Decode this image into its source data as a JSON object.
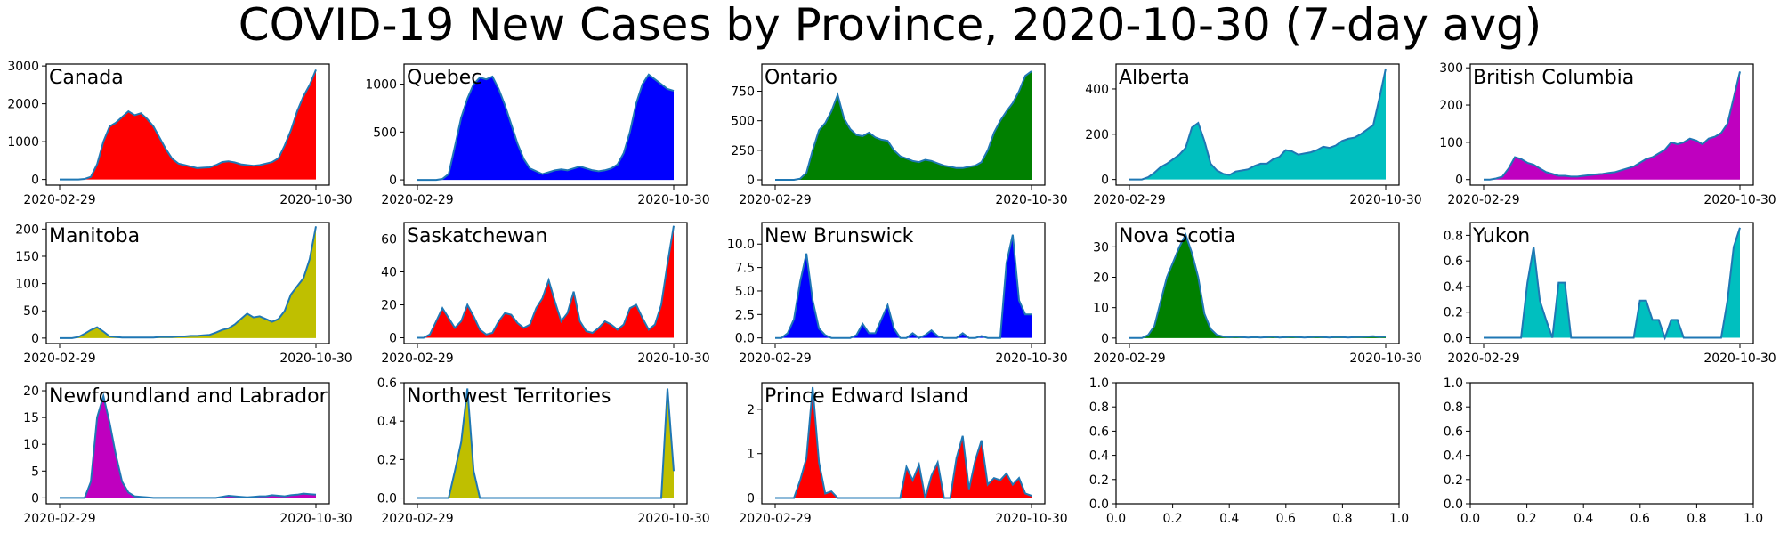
{
  "title": "COVID-19 New Cases by Province, 2020-10-30 (7-day avg)",
  "chart_data": [
    {
      "type": "area",
      "title": "Canada",
      "color": "#ff0000",
      "x_ticks": [
        "2020-02-29",
        "2020-10-30"
      ],
      "yticks": [
        0,
        1000,
        2000,
        3000
      ],
      "ylim": [
        -150,
        3050
      ],
      "series": [
        {
          "values": [
            0,
            0,
            0,
            0,
            15,
            70,
            400,
            1000,
            1400,
            1500,
            1650,
            1800,
            1700,
            1750,
            1600,
            1400,
            1100,
            800,
            550,
            420,
            380,
            340,
            300,
            310,
            320,
            380,
            460,
            480,
            450,
            400,
            380,
            360,
            380,
            420,
            460,
            560,
            900,
            1300,
            1800,
            2200,
            2500,
            2900
          ]
        }
      ]
    },
    {
      "type": "area",
      "title": "Quebec",
      "color": "#0000ff",
      "x_ticks": [
        "2020-02-29",
        "2020-10-30"
      ],
      "yticks": [
        0,
        500,
        1000
      ],
      "ylim": [
        -55,
        1210
      ],
      "series": [
        {
          "values": [
            0,
            0,
            0,
            0,
            10,
            60,
            350,
            650,
            850,
            1000,
            1070,
            1050,
            1080,
            950,
            780,
            580,
            380,
            220,
            120,
            90,
            60,
            80,
            100,
            110,
            100,
            120,
            140,
            120,
            100,
            90,
            100,
            120,
            160,
            280,
            500,
            800,
            1000,
            1100,
            1050,
            1000,
            950,
            930
          ]
        }
      ]
    },
    {
      "type": "area",
      "title": "Ontario",
      "color": "#008000",
      "x_ticks": [
        "2020-02-29",
        "2020-10-30"
      ],
      "yticks": [
        0,
        250,
        500,
        750
      ],
      "ylim": [
        -45,
        980
      ],
      "series": [
        {
          "values": [
            0,
            0,
            0,
            0,
            10,
            60,
            250,
            420,
            480,
            580,
            720,
            520,
            430,
            380,
            370,
            400,
            360,
            340,
            330,
            250,
            200,
            180,
            160,
            150,
            170,
            160,
            140,
            120,
            110,
            100,
            100,
            110,
            120,
            150,
            250,
            400,
            500,
            580,
            650,
            750,
            880,
            920
          ]
        }
      ]
    },
    {
      "type": "area",
      "title": "Alberta",
      "color": "#00bfbf",
      "x_ticks": [
        "2020-02-29",
        "2020-10-30"
      ],
      "yticks": [
        0,
        200,
        400
      ],
      "ylim": [
        -25,
        510
      ],
      "series": [
        {
          "values": [
            0,
            0,
            0,
            10,
            30,
            55,
            70,
            90,
            110,
            140,
            230,
            250,
            170,
            70,
            40,
            25,
            20,
            35,
            40,
            45,
            60,
            70,
            70,
            90,
            100,
            130,
            125,
            110,
            115,
            120,
            130,
            145,
            140,
            150,
            170,
            180,
            185,
            200,
            220,
            240,
            360,
            490
          ]
        }
      ]
    },
    {
      "type": "area",
      "title": "British Columbia",
      "color": "#bf00bf",
      "x_ticks": [
        "2020-02-29",
        "2020-10-30"
      ],
      "yticks": [
        0,
        100,
        200,
        300
      ],
      "ylim": [
        -15,
        310
      ],
      "series": [
        {
          "values": [
            0,
            0,
            3,
            8,
            30,
            60,
            55,
            45,
            40,
            30,
            20,
            15,
            10,
            10,
            8,
            8,
            10,
            12,
            14,
            15,
            18,
            20,
            25,
            30,
            35,
            45,
            55,
            60,
            70,
            80,
            100,
            95,
            100,
            110,
            105,
            95,
            110,
            115,
            125,
            150,
            220,
            290
          ]
        }
      ]
    },
    {
      "type": "area",
      "title": "Manitoba",
      "color": "#bfbf00",
      "x_ticks": [
        "2020-02-29",
        "2020-10-30"
      ],
      "yticks": [
        0,
        50,
        100,
        150,
        200
      ],
      "ylim": [
        -10,
        212
      ],
      "series": [
        {
          "values": [
            0,
            0,
            0,
            2,
            8,
            15,
            20,
            12,
            3,
            2,
            1,
            1,
            1,
            1,
            1,
            1,
            2,
            2,
            2,
            3,
            3,
            4,
            4,
            5,
            6,
            10,
            15,
            18,
            25,
            35,
            45,
            38,
            40,
            35,
            30,
            35,
            50,
            80,
            95,
            110,
            145,
            205
          ]
        }
      ]
    },
    {
      "type": "area",
      "title": "Saskatchewan",
      "color": "#ff0000",
      "x_ticks": [
        "2020-02-29",
        "2020-10-30"
      ],
      "yticks": [
        0,
        20,
        40,
        60
      ],
      "ylim": [
        -3.5,
        70
      ],
      "series": [
        {
          "values": [
            0,
            0,
            2,
            10,
            18,
            12,
            6,
            10,
            20,
            13,
            5,
            2,
            3,
            10,
            15,
            14,
            9,
            6,
            8,
            18,
            24,
            35,
            22,
            10,
            15,
            28,
            10,
            4,
            3,
            6,
            10,
            8,
            5,
            8,
            18,
            20,
            12,
            5,
            8,
            20,
            45,
            68
          ]
        }
      ]
    },
    {
      "type": "area",
      "title": "New Brunswick",
      "color": "#0000ff",
      "x_ticks": [
        "2020-02-29",
        "2020-10-30"
      ],
      "yticks": [
        0,
        2.5,
        5,
        7.5,
        10
      ],
      "yticklabels": [
        "0.0",
        "2.5",
        "5.0",
        "7.5",
        "10.0"
      ],
      "ylim": [
        -0.6,
        12.3
      ],
      "series": [
        {
          "values": [
            0,
            0,
            0.5,
            2,
            6,
            9,
            4,
            1,
            0.3,
            0,
            0,
            0,
            0,
            0.3,
            1.5,
            0.5,
            0.5,
            2,
            3.5,
            1,
            0,
            0,
            0.5,
            0,
            0.3,
            0.8,
            0.2,
            0,
            0,
            0,
            0.5,
            0,
            0,
            0.2,
            0,
            0,
            0,
            8,
            11,
            4,
            2.5,
            2.5
          ]
        }
      ]
    },
    {
      "type": "area",
      "title": "Nova Scotia",
      "color": "#008000",
      "x_ticks": [
        "2020-02-29",
        "2020-10-30"
      ],
      "yticks": [
        0,
        10,
        20,
        30
      ],
      "ylim": [
        -1.8,
        38
      ],
      "series": [
        {
          "values": [
            0,
            0,
            0,
            1,
            4,
            12,
            20,
            25,
            30,
            34,
            28,
            20,
            8,
            3,
            1,
            0.5,
            0.3,
            0.5,
            0.3,
            0.2,
            0.3,
            0.2,
            0.3,
            0.5,
            0.2,
            0.3,
            0.5,
            0.3,
            0.2,
            0.3,
            0.5,
            0.3,
            0.2,
            0.4,
            0.3,
            0.2,
            0.3,
            0.4,
            0.5,
            0.6,
            0.4,
            0.5
          ]
        }
      ]
    },
    {
      "type": "area",
      "title": "Yukon",
      "color": "#00bfbf",
      "x_ticks": [
        "2020-02-29",
        "2020-10-30"
      ],
      "yticks": [
        0,
        0.2,
        0.4,
        0.6,
        0.8
      ],
      "yticklabels": [
        "0.0",
        "0.2",
        "0.4",
        "0.6",
        "0.8"
      ],
      "ylim": [
        -0.045,
        0.9
      ],
      "series": [
        {
          "values": [
            0,
            0,
            0,
            0,
            0,
            0,
            0,
            0.43,
            0.71,
            0.29,
            0.14,
            0,
            0.43,
            0.43,
            0,
            0,
            0,
            0,
            0,
            0,
            0,
            0,
            0,
            0,
            0,
            0.29,
            0.29,
            0.14,
            0.14,
            0,
            0.14,
            0.14,
            0,
            0,
            0,
            0,
            0,
            0,
            0,
            0.29,
            0.71,
            0.86
          ]
        }
      ]
    },
    {
      "type": "area",
      "title": "Newfoundland and Labrador",
      "color": "#bf00bf",
      "x_ticks": [
        "2020-02-29",
        "2020-10-30"
      ],
      "yticks": [
        0,
        5,
        10,
        15,
        20
      ],
      "ylim": [
        -1.1,
        21.5
      ],
      "series": [
        {
          "values": [
            0,
            0,
            0,
            0,
            0,
            3,
            15,
            19,
            14,
            8,
            3,
            1,
            0.3,
            0.2,
            0.1,
            0,
            0,
            0,
            0,
            0,
            0,
            0,
            0,
            0,
            0,
            0,
            0.2,
            0.4,
            0.3,
            0.2,
            0.1,
            0.2,
            0.3,
            0.3,
            0.5,
            0.4,
            0.3,
            0.5,
            0.6,
            0.8,
            0.7,
            0.6
          ]
        }
      ]
    },
    {
      "type": "area",
      "title": "Northwest Territories",
      "color": "#bfbf00",
      "x_ticks": [
        "2020-02-29",
        "2020-10-30"
      ],
      "yticks": [
        0,
        0.2,
        0.4,
        0.6
      ],
      "yticklabels": [
        "0.0",
        "0.2",
        "0.4",
        "0.6"
      ],
      "ylim": [
        -0.03,
        0.6
      ],
      "series": [
        {
          "values": [
            0,
            0,
            0,
            0,
            0,
            0,
            0.14,
            0.29,
            0.57,
            0.14,
            0,
            0,
            0,
            0,
            0,
            0,
            0,
            0,
            0,
            0,
            0,
            0,
            0,
            0,
            0,
            0,
            0,
            0,
            0,
            0,
            0,
            0,
            0,
            0,
            0,
            0,
            0,
            0,
            0,
            0,
            0.57,
            0.14
          ]
        }
      ]
    },
    {
      "type": "area",
      "title": "Prince Edward Island",
      "color": "#ff0000",
      "x_ticks": [
        "2020-02-29",
        "2020-10-30"
      ],
      "yticks": [
        0,
        1,
        2
      ],
      "ylim": [
        -0.13,
        2.6
      ],
      "series": [
        {
          "values": [
            0,
            0,
            0,
            0,
            0.4,
            0.9,
            2.5,
            0.8,
            0.1,
            0.15,
            0,
            0,
            0,
            0,
            0,
            0,
            0,
            0,
            0,
            0,
            0,
            0.7,
            0.4,
            0.75,
            0,
            0.5,
            0.8,
            0,
            0,
            0.9,
            1.4,
            0.2,
            0.85,
            1.3,
            0.3,
            0.45,
            0.4,
            0.55,
            0.3,
            0.45,
            0.1,
            0.05
          ]
        }
      ]
    },
    {
      "type": "area",
      "title": "",
      "color": "#000000",
      "xticks": [
        "0.0",
        "0.2",
        "0.4",
        "0.6",
        "0.8",
        "1.0"
      ],
      "yticks": [
        0,
        0.2,
        0.4,
        0.6,
        0.8,
        1.0
      ],
      "yticklabels": [
        "0.0",
        "0.2",
        "0.4",
        "0.6",
        "0.8",
        "1.0"
      ],
      "ylim": [
        0,
        1
      ],
      "series": []
    },
    {
      "type": "area",
      "title": "",
      "color": "#000000",
      "xticks": [
        "0.0",
        "0.2",
        "0.4",
        "0.6",
        "0.8",
        "1.0"
      ],
      "yticks": [
        0,
        0.2,
        0.4,
        0.6,
        0.8,
        1.0
      ],
      "yticklabels": [
        "0.0",
        "0.2",
        "0.4",
        "0.6",
        "0.8",
        "1.0"
      ],
      "ylim": [
        0,
        1
      ],
      "series": []
    }
  ]
}
